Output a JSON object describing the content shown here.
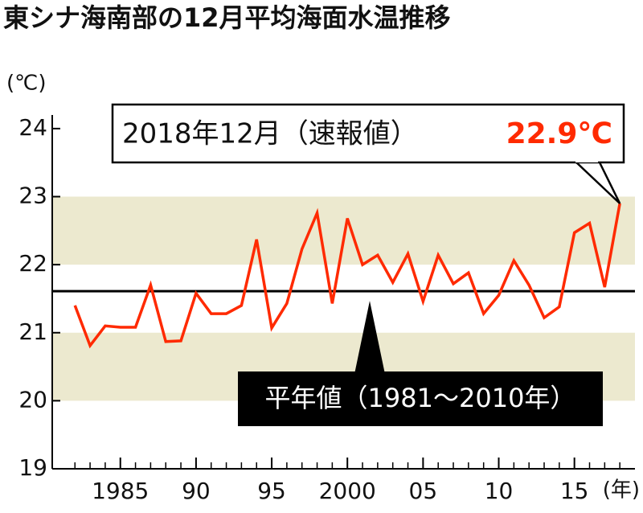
{
  "chart_data": {
    "type": "line",
    "title": "東シナ海南部の12月平均海面水温推移",
    "y_label": "(℃)",
    "x_label": "(年)",
    "x": [
      1982,
      1983,
      1984,
      1985,
      1986,
      1987,
      1988,
      1989,
      1990,
      1991,
      1992,
      1993,
      1994,
      1995,
      1996,
      1997,
      1998,
      1999,
      2000,
      2001,
      2002,
      2003,
      2004,
      2005,
      2006,
      2007,
      2008,
      2009,
      2010,
      2011,
      2012,
      2013,
      2014,
      2015,
      2016,
      2017,
      2018
    ],
    "series": [
      {
        "color": "#ff2a00",
        "values": [
          21.4,
          20.81,
          21.1,
          21.08,
          21.08,
          21.7,
          20.87,
          20.88,
          21.58,
          21.28,
          21.28,
          21.4,
          22.37,
          21.07,
          21.43,
          22.23,
          22.76,
          21.43,
          22.68,
          22.0,
          22.14,
          21.74,
          22.16,
          21.46,
          22.14,
          21.72,
          21.88,
          21.28,
          21.55,
          22.06,
          21.7,
          21.22,
          21.38,
          22.47,
          22.61,
          21.67,
          22.9
        ],
        "value_labels": [
          null,
          null,
          null,
          null,
          null,
          null,
          null,
          null,
          null,
          null,
          null,
          null,
          null,
          null,
          null,
          null,
          null,
          null,
          null,
          null,
          null,
          null,
          null,
          null,
          null,
          null,
          null,
          null,
          null,
          null,
          null,
          null,
          null,
          null,
          null,
          null,
          "22.9℃"
        ]
      }
    ],
    "callout": "2018年12月（速報値）",
    "normal": {
      "label": "平年値（1981～2010年）",
      "value": 21.61,
      "color": "#000000"
    },
    "bands": [
      [
        20,
        21
      ],
      [
        22,
        23
      ]
    ],
    "band_color": "#ece9cf",
    "xlim": [
      1980.5,
      2019
    ],
    "ylim": [
      19,
      24.2
    ],
    "yticks": [
      19,
      20,
      21,
      22,
      23,
      24
    ],
    "xticks": [
      1985,
      {
        "value": 1990,
        "label": "90"
      },
      {
        "value": 1995,
        "label": "95"
      },
      2000,
      {
        "value": 2005,
        "label": "05"
      },
      {
        "value": 2010,
        "label": "10"
      },
      {
        "value": 2015,
        "label": "15"
      }
    ]
  }
}
